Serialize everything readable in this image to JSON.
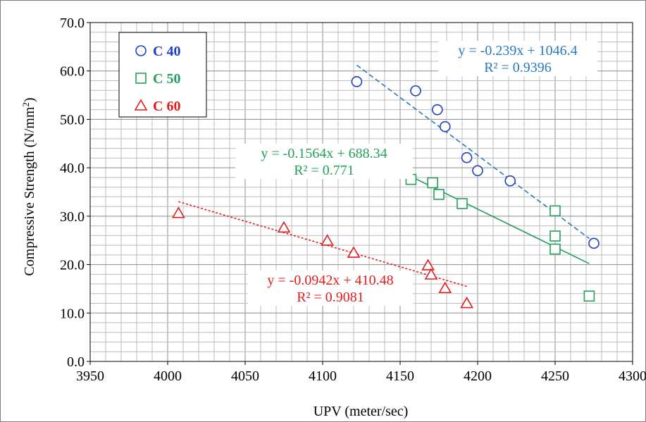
{
  "chart_data": {
    "type": "scatter",
    "xlabel": "UPV (meter/sec)",
    "ylabel_main": "Compressive Strength  (N/mm",
    "ylabel_sup": "2",
    "ylabel_close": ")",
    "xlim": [
      3950,
      4300
    ],
    "ylim": [
      0,
      70
    ],
    "x_ticks": [
      3950,
      4000,
      4050,
      4100,
      4150,
      4200,
      4250,
      4300
    ],
    "x_tick_labels": [
      "3950",
      "4000",
      "4050",
      "4100",
      "4150",
      "4200",
      "4250",
      "4300"
    ],
    "y_ticks": [
      0,
      10,
      20,
      30,
      40,
      50,
      60,
      70
    ],
    "y_tick_labels": [
      "0.0",
      "10.0",
      "20.0",
      "30.0",
      "40.0",
      "50.0",
      "60.0",
      "70.0"
    ],
    "minor_grid_x_step": 10,
    "minor_grid_y_step": 2,
    "grid": true,
    "legend_position": "top-left",
    "series": [
      {
        "name": "C 40",
        "marker": "circle",
        "color": "#1f3fbf",
        "points": [
          [
            4122,
            57.8
          ],
          [
            4160,
            55.9
          ],
          [
            4174,
            52.0
          ],
          [
            4179,
            48.5
          ],
          [
            4193,
            42.1
          ],
          [
            4200,
            39.4
          ],
          [
            4221,
            37.3
          ],
          [
            4275,
            24.4
          ]
        ],
        "trendline": {
          "x": [
            4122,
            4272
          ],
          "y": [
            61.2,
            25.4
          ],
          "color": "#2a7ab8",
          "dash": "dashed"
        },
        "equation": "y = -0.239x + 1046.4",
        "r2": "R² = 0.9396",
        "label_color": "#2a7ab8"
      },
      {
        "name": "C 50",
        "marker": "square",
        "color": "#22a05a",
        "points": [
          [
            4157,
            37.6
          ],
          [
            4171,
            36.9
          ],
          [
            4175,
            34.5
          ],
          [
            4190,
            32.6
          ],
          [
            4250,
            31.1
          ],
          [
            4250,
            25.9
          ],
          [
            4250,
            23.2
          ],
          [
            4272,
            13.5
          ]
        ],
        "trendline": {
          "x": [
            4157,
            4272
          ],
          "y": [
            38.2,
            20.2
          ],
          "color": "#22a05a",
          "dash": "solid"
        },
        "equation": "y = -0.1564x + 688.34",
        "r2": "R² = 0.771",
        "label_color": "#22a05a"
      },
      {
        "name": "C 60",
        "marker": "triangle",
        "color": "#e01c1c",
        "points": [
          [
            4007,
            30.6
          ],
          [
            4075,
            27.6
          ],
          [
            4103,
            24.9
          ],
          [
            4120,
            22.4
          ],
          [
            4168,
            19.8
          ],
          [
            4170,
            17.9
          ],
          [
            4179,
            15.1
          ],
          [
            4193,
            12.0
          ]
        ],
        "trendline": {
          "x": [
            4007,
            4193
          ],
          "y": [
            33.0,
            15.5
          ],
          "color": "#e01c1c",
          "dash": "dotted"
        },
        "equation": "y = -0.0942x + 410.48",
        "r2": "R² = 0.9081",
        "label_color": "#e01c1c"
      }
    ]
  }
}
